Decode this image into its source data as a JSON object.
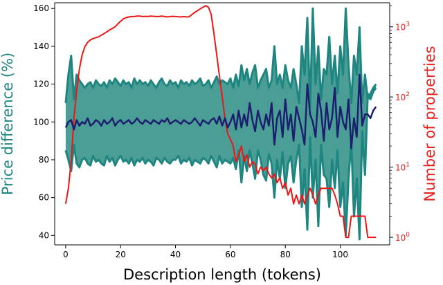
{
  "colors": {
    "band": "#4a9e96",
    "band_edge": "#1f8580",
    "mean_line": "#1c1f6e",
    "count_line": "#f01515",
    "left_axis_text": "#1f8580",
    "right_axis_text": "#e8211d",
    "axis": "#000000"
  },
  "chart_data": {
    "type": "line",
    "xlabel": "Description length (tokens)",
    "ylabel": "Price difference (%)",
    "y2label": "Number of properties",
    "x_ticks": [
      "0",
      "20",
      "40",
      "60",
      "80",
      "100"
    ],
    "y_ticks": [
      "40",
      "60",
      "80",
      "100",
      "120",
      "140",
      "160"
    ],
    "y2_ticks": [
      "10^0",
      "10^1",
      "10^2",
      "10^3"
    ],
    "xlim": [
      -4,
      118
    ],
    "ylim": [
      35,
      163
    ],
    "y2lim": [
      0.78,
      2200
    ],
    "y2_scale": "log",
    "grid": false,
    "legend": "none",
    "x": [
      0,
      1,
      2,
      3,
      4,
      5,
      6,
      7,
      8,
      9,
      10,
      11,
      12,
      13,
      14,
      15,
      16,
      17,
      18,
      19,
      20,
      21,
      22,
      23,
      24,
      25,
      26,
      27,
      28,
      29,
      30,
      31,
      32,
      33,
      34,
      35,
      36,
      37,
      38,
      39,
      40,
      41,
      42,
      43,
      44,
      45,
      46,
      47,
      48,
      49,
      50,
      51,
      52,
      53,
      54,
      55,
      56,
      57,
      58,
      59,
      60,
      61,
      62,
      63,
      64,
      65,
      66,
      67,
      68,
      69,
      70,
      71,
      72,
      73,
      74,
      75,
      76,
      77,
      78,
      79,
      80,
      81,
      82,
      83,
      84,
      85,
      86,
      87,
      88,
      89,
      90,
      91,
      92,
      93,
      94,
      95,
      96,
      97,
      98,
      99,
      100,
      101,
      102,
      103,
      104,
      105,
      106,
      107,
      108,
      109,
      110,
      111,
      112,
      113
    ],
    "series": [
      {
        "role": "upper",
        "values": [
          110,
          125,
          135,
          112,
          125,
          122,
          120,
          118,
          120,
          121,
          118,
          122,
          120,
          119,
          121,
          118,
          122,
          120,
          123,
          121,
          119,
          122,
          120,
          121,
          118,
          123,
          120,
          122,
          120,
          121,
          119,
          122,
          120,
          118,
          121,
          123,
          120,
          119,
          122,
          120,
          121,
          118,
          122,
          120,
          121,
          119,
          122,
          120,
          121,
          123,
          119,
          120,
          122,
          118,
          121,
          124,
          120,
          122,
          121,
          120,
          123,
          118,
          125,
          119,
          130,
          122,
          128,
          120,
          126,
          130,
          118,
          122,
          125,
          128,
          118,
          122,
          140,
          120,
          125,
          118,
          130,
          122,
          118,
          128,
          120,
          110,
          140,
          125,
          155,
          108,
          160,
          120,
          140,
          112,
          128,
          125,
          145,
          120,
          135,
          115,
          140,
          125,
          160,
          130,
          110,
          135,
          125,
          150,
          110,
          125,
          112,
          115,
          118,
          120
        ]
      },
      {
        "role": "lower",
        "values": [
          85,
          80,
          74,
          88,
          78,
          76,
          80,
          81,
          78,
          77,
          82,
          79,
          80,
          78,
          77,
          82,
          79,
          81,
          77,
          80,
          82,
          79,
          80,
          78,
          81,
          77,
          80,
          79,
          81,
          78,
          80,
          79,
          77,
          81,
          80,
          78,
          81,
          79,
          78,
          80,
          80,
          82,
          78,
          80,
          79,
          81,
          77,
          80,
          79,
          78,
          81,
          80,
          78,
          82,
          79,
          76,
          82,
          78,
          80,
          79,
          78,
          81,
          75,
          85,
          68,
          82,
          74,
          85,
          78,
          70,
          85,
          80,
          72,
          69,
          83,
          78,
          60,
          80,
          70,
          84,
          65,
          78,
          82,
          68,
          80,
          88,
          55,
          75,
          43,
          92,
          60,
          80,
          45,
          88,
          72,
          70,
          55,
          80,
          65,
          85,
          55,
          68,
          40,
          70,
          90,
          50,
          70,
          38,
          95,
          72,
          115,
          112,
          116,
          118
        ]
      },
      {
        "name": "",
        "role": "mean",
        "values": [
          97,
          100,
          101,
          96,
          101,
          98,
          100,
          99,
          102,
          98,
          99,
          101,
          100,
          98,
          101,
          99,
          100,
          102,
          98,
          100,
          101,
          99,
          100,
          101,
          99,
          100,
          102,
          100,
          99,
          101,
          100,
          99,
          101,
          100,
          99,
          101,
          100,
          102,
          99,
          100,
          101,
          100,
          99,
          101,
          100,
          99,
          100,
          102,
          100,
          98,
          101,
          100,
          99,
          101,
          102,
          99,
          103,
          98,
          102,
          97,
          100,
          104,
          96,
          106,
          97,
          104,
          98,
          110,
          101,
          95,
          106,
          100,
          96,
          104,
          98,
          110,
          88,
          102,
          106,
          92,
          112,
          96,
          104,
          90,
          108,
          102,
          96,
          88,
          120,
          104,
          100,
          92,
          115,
          106,
          90,
          110,
          96,
          102,
          118,
          92,
          108,
          100,
          96,
          112,
          86,
          102,
          92,
          125,
          98,
          104,
          104,
          102,
          106,
          108
        ]
      },
      {
        "name": "",
        "axis": "right",
        "role": "count",
        "values": [
          3,
          5,
          12,
          50,
          120,
          250,
          400,
          520,
          600,
          650,
          680,
          700,
          720,
          760,
          800,
          850,
          900,
          950,
          1000,
          1100,
          1200,
          1300,
          1350,
          1380,
          1400,
          1400,
          1420,
          1420,
          1400,
          1410,
          1400,
          1420,
          1410,
          1400,
          1400,
          1420,
          1400,
          1380,
          1400,
          1410,
          1400,
          1390,
          1380,
          1400,
          1380,
          1390,
          1500,
          1600,
          1700,
          1800,
          1900,
          2000,
          1900,
          1500,
          800,
          400,
          200,
          100,
          50,
          30,
          25,
          20,
          12,
          15,
          20,
          12,
          15,
          10,
          12,
          11,
          8,
          10,
          9,
          10,
          8,
          7,
          8,
          6,
          7,
          5,
          6,
          4,
          5,
          3,
          4,
          3,
          4,
          3,
          4,
          5,
          4,
          3,
          4,
          5,
          5,
          5,
          5,
          5,
          4,
          3,
          2,
          2,
          1,
          1,
          2,
          2,
          2,
          2,
          2,
          2,
          1,
          1,
          1,
          1
        ]
      }
    ]
  }
}
